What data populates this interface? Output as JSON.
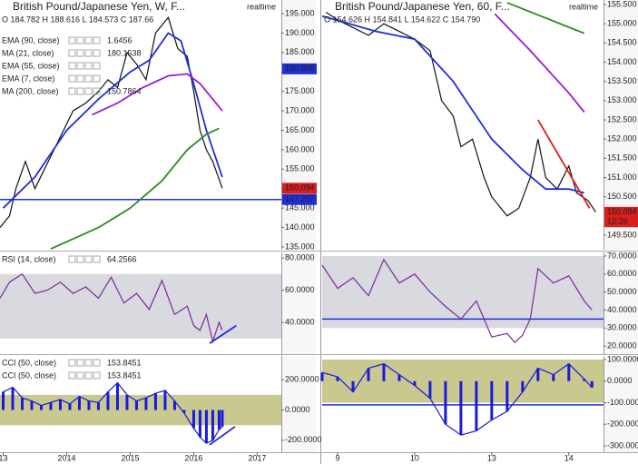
{
  "chart_data": [
    {
      "type": "line",
      "title": "British Pound/Japanese Yen, W, F...",
      "status": "realtime",
      "ohlc": "O 184.782  H 188.616  L 184.573  C 187.66",
      "indicators": [
        {
          "name": "EMA (90, close)",
          "value": "1.6456"
        },
        {
          "name": "MA (21, close)",
          "value": "180.1538"
        },
        {
          "name": "EMA (55, close)"
        },
        {
          "name": "EMA (7, close)"
        },
        {
          "name": "MA (200, close)",
          "value": "150.7864"
        }
      ],
      "xlim": [
        2012.95,
        2017.38
      ],
      "ylim": [
        134.3,
        198.5
      ],
      "yticks": [
        {
          "value": 135,
          "label": "135.000"
        },
        {
          "value": 140,
          "label": "140.000"
        },
        {
          "value": 145,
          "label": "145.000"
        },
        {
          "value": 150,
          "label": "150.000"
        },
        {
          "value": 155,
          "label": "155.000"
        },
        {
          "value": 160,
          "label": "160.000"
        },
        {
          "value": 165,
          "label": "165.000"
        },
        {
          "value": 170,
          "label": "170.000"
        },
        {
          "value": 175,
          "label": "175.000"
        },
        {
          "value": 180,
          "label": "180.000"
        },
        {
          "value": 185,
          "label": "185.000"
        },
        {
          "value": 190,
          "label": "190.000"
        },
        {
          "value": 195,
          "label": "195.000"
        }
      ],
      "series": [
        {
          "color": "#111111",
          "x": [
            2012.95,
            2013.1,
            2013.2,
            2013.35,
            2013.5,
            2013.65,
            2013.8,
            2013.95,
            2014.1,
            2014.3,
            2014.5,
            2014.65,
            2014.8,
            2014.95,
            2015.1,
            2015.25,
            2015.4,
            2015.5,
            2015.6,
            2015.75,
            2015.9,
            2016.0,
            2016.1,
            2016.2,
            2016.3,
            2016.45
          ],
          "values": [
            140,
            143,
            150,
            157,
            150,
            155,
            160,
            165,
            170,
            172,
            175,
            178,
            176,
            185,
            182,
            178,
            190,
            192,
            194,
            186,
            184,
            175,
            165,
            160,
            157,
            150.1
          ]
        },
        {
          "name": "MA (21, close)",
          "color": "#1f2fd8",
          "x": [
            2013.0,
            2013.5,
            2014.0,
            2014.5,
            2015.0,
            2015.3,
            2015.6,
            2015.8,
            2016.0,
            2016.2,
            2016.45
          ],
          "values": [
            145,
            153,
            165,
            173,
            180,
            183,
            190,
            188,
            177,
            165,
            153
          ]
        },
        {
          "name": "EMA (90, close)",
          "color": "#9a1ad8",
          "x": [
            2014.4,
            2014.8,
            2015.2,
            2015.6,
            2015.9,
            2016.1,
            2016.3,
            2016.45
          ],
          "values": [
            169,
            172,
            176,
            179,
            179.5,
            177,
            173,
            170
          ]
        },
        {
          "name": "MA (200, close)",
          "color": "#2e8b1e",
          "x": [
            2013.75,
            2014.5,
            2015.0,
            2015.5,
            2015.9,
            2016.2,
            2016.4
          ],
          "values": [
            134.5,
            140,
            145,
            152,
            160,
            164,
            165.5
          ]
        }
      ],
      "hlines": [
        {
          "value": 147.207,
          "color": "#1f2fd8"
        }
      ],
      "price_labels": [
        {
          "value": 180.8,
          "label": "180.800",
          "color": "#1f2fd8"
        },
        {
          "value": 150.094,
          "label": "150.094",
          "color": "#d81e1e"
        },
        {
          "value": 147.207,
          "label": "147.207",
          "color": "#1f2fd8"
        }
      ]
    },
    {
      "type": "line",
      "indicators": [
        {
          "name": "RSI (14, close)",
          "value": "64.2566"
        }
      ],
      "xlim": [
        2012.95,
        2017.38
      ],
      "ylim": [
        20.3,
        83.4
      ],
      "band": [
        30,
        70
      ],
      "yticks": [
        {
          "value": 40,
          "label": "40.0000"
        },
        {
          "value": 60,
          "label": "60.0000"
        },
        {
          "value": 80,
          "label": "80.0000"
        }
      ],
      "series": [
        {
          "color": "#7a2a9a",
          "x": [
            2012.95,
            2013.1,
            2013.3,
            2013.5,
            2013.7,
            2013.9,
            2014.1,
            2014.3,
            2014.5,
            2014.7,
            2014.9,
            2015.1,
            2015.3,
            2015.5,
            2015.7,
            2015.9,
            2016.0,
            2016.1,
            2016.2,
            2016.3,
            2016.4,
            2016.45
          ],
          "values": [
            55,
            65,
            70,
            58,
            60,
            65,
            58,
            62,
            55,
            68,
            52,
            58,
            48,
            66,
            45,
            50,
            38,
            35,
            45,
            28,
            40,
            35
          ]
        }
      ],
      "trend": {
        "x": [
          2016.25,
          2016.67
        ],
        "y": [
          27,
          38
        ],
        "color": "#1f2fd8"
      }
    },
    {
      "type": "bar",
      "indicators": [
        {
          "name": "CCI (50, close)",
          "value": "153.8451"
        },
        {
          "name": "CCI (50, close)",
          "value": "153.8451"
        }
      ],
      "xlim": [
        2012.95,
        2017.38
      ],
      "ylim": [
        -278.8,
        357.6
      ],
      "band": [
        -100,
        100
      ],
      "yticks": [
        {
          "value": -200,
          "label": "-200.0000"
        },
        {
          "value": 0,
          "label": "0.0000"
        },
        {
          "value": 200,
          "label": "200.0000"
        }
      ],
      "xticks": [
        {
          "value": 2013,
          "label": "13"
        },
        2014,
        2015,
        2016,
        2017
      ],
      "series": [
        {
          "color": "#1a1adc",
          "x": [
            2013.0,
            2013.15,
            2013.3,
            2013.45,
            2013.6,
            2013.75,
            2013.9,
            2014.05,
            2014.2,
            2014.35,
            2014.5,
            2014.65,
            2014.8,
            2014.95,
            2015.1,
            2015.25,
            2015.4,
            2015.55,
            2015.7,
            2015.85,
            2016.0,
            2016.1,
            2016.2,
            2016.3,
            2016.4,
            2016.45
          ],
          "values": [
            120,
            150,
            80,
            60,
            30,
            50,
            70,
            40,
            90,
            60,
            50,
            120,
            180,
            100,
            60,
            80,
            110,
            130,
            60,
            -20,
            -120,
            -180,
            -220,
            -200,
            -130,
            -110
          ]
        }
      ],
      "trend": {
        "x": [
          2016.25,
          2016.65
        ],
        "y": [
          -230,
          -110
        ],
        "color": "#1f2fd8"
      }
    },
    {
      "type": "line",
      "title": "British Pound/Japanese Yen, 60, F...",
      "status": "realtime",
      "ohlc": "O 154.626  H 154.841  L 154.622  C 154.790",
      "xlim": [
        -0.2,
        3.45
      ],
      "ylim": [
        149.122,
        155.618
      ],
      "yticks": [
        {
          "value": 149.5,
          "label": "149.500"
        },
        {
          "value": 150,
          "label": "150.000"
        },
        {
          "value": 150.5,
          "label": "150.500"
        },
        {
          "value": 151,
          "label": "151.000"
        },
        {
          "value": 151.5,
          "label": "151.500"
        },
        {
          "value": 152,
          "label": "152.000"
        },
        {
          "value": 152.5,
          "label": "152.500"
        },
        {
          "value": 153,
          "label": "153.000"
        },
        {
          "value": 153.5,
          "label": "153.500"
        },
        {
          "value": 154,
          "label": "154.000"
        },
        {
          "value": 154.5,
          "label": "154.500"
        },
        {
          "value": 155,
          "label": "155.000"
        },
        {
          "value": 155.5,
          "label": "155.500"
        }
      ],
      "series": [
        {
          "color": "#111111",
          "x": [
            -0.15,
            0,
            0.2,
            0.4,
            0.6,
            0.8,
            1.0,
            1.2,
            1.35,
            1.5,
            1.6,
            1.75,
            1.9,
            2.0,
            2.2,
            2.35,
            2.5,
            2.6,
            2.7,
            2.85,
            3.0,
            3.1,
            3.25,
            3.35
          ],
          "values": [
            155.3,
            155.1,
            154.9,
            154.7,
            155.0,
            154.8,
            154.6,
            154.3,
            153.0,
            152.6,
            151.8,
            152.0,
            151.0,
            150.5,
            150.0,
            150.2,
            151.0,
            152.0,
            151.0,
            150.7,
            151.3,
            150.6,
            150.4,
            150.1
          ]
        },
        {
          "color": "#1f2fd8",
          "x": [
            -0.2,
            0.5,
            1.0,
            1.5,
            2.0,
            2.4,
            2.7,
            3.0,
            3.2
          ],
          "values": [
            155.2,
            154.8,
            154.6,
            153.5,
            152.0,
            151.2,
            150.7,
            150.7,
            150.6
          ]
        },
        {
          "color": "#9a1ad8",
          "x": [
            2.04,
            2.5,
            3.0,
            3.2
          ],
          "values": [
            155.26,
            154.3,
            153.2,
            152.7
          ]
        },
        {
          "color": "#2e8b1e",
          "x": [
            2.2,
            3.2
          ],
          "values": [
            155.55,
            154.75
          ]
        }
      ],
      "trend": {
        "x": [
          2.6,
          3.27
        ],
        "y": [
          152.5,
          150.2
        ],
        "color": "#e02010"
      },
      "price_labels": [
        {
          "value": 150.094,
          "label": "150.094",
          "color": "#d81e1e"
        },
        {
          "value": 149.85,
          "label": "12:26",
          "color": "#d81e1e"
        }
      ]
    },
    {
      "type": "line",
      "xlim": [
        -0.2,
        3.45
      ],
      "ylim": [
        15.5,
        72
      ],
      "band": [
        30,
        70
      ],
      "yticks": [
        {
          "value": 20,
          "label": "20.0000"
        },
        {
          "value": 30,
          "label": "30.0000"
        },
        {
          "value": 40,
          "label": "40.0000"
        },
        {
          "value": 50,
          "label": "50.0000"
        },
        {
          "value": 60,
          "label": "60.0000"
        },
        {
          "value": 70,
          "label": "70.0000"
        }
      ],
      "series": [
        {
          "color": "#7a2a9a",
          "x": [
            -0.2,
            0,
            0.2,
            0.4,
            0.6,
            0.8,
            1.0,
            1.2,
            1.4,
            1.6,
            1.8,
            2.0,
            2.2,
            2.3,
            2.4,
            2.5,
            2.6,
            2.8,
            3.0,
            3.2,
            3.3
          ],
          "values": [
            65,
            52,
            58,
            48,
            68,
            55,
            60,
            50,
            42,
            35,
            45,
            25,
            27,
            22,
            26,
            35,
            63,
            55,
            59,
            45,
            40
          ]
        }
      ],
      "hlines": [
        {
          "value": 35,
          "color": "#1f2fd8"
        }
      ]
    },
    {
      "type": "bar",
      "xlim": [
        -0.2,
        3.45
      ],
      "ylim": [
        -329.5,
        116.8
      ],
      "band": [
        -100,
        100
      ],
      "yticks": [
        {
          "value": -300,
          "label": "-300.0000"
        },
        {
          "value": -200,
          "label": "-200.0000"
        },
        {
          "value": -100,
          "label": "-100.0000"
        },
        {
          "value": 0,
          "label": "0.0000"
        },
        {
          "value": 100,
          "label": "100.0000"
        }
      ],
      "xticks": [
        {
          "value": 0,
          "label": "9"
        },
        {
          "value": 1,
          "label": "10"
        },
        {
          "value": 2,
          "label": "13"
        },
        {
          "value": 3,
          "label": "14"
        }
      ],
      "series": [
        {
          "color": "#1a1adc",
          "x": [
            -0.2,
            0,
            0.2,
            0.4,
            0.6,
            0.8,
            1.0,
            1.2,
            1.4,
            1.6,
            1.8,
            2.0,
            2.2,
            2.4,
            2.6,
            2.8,
            3.0,
            3.2,
            3.3
          ],
          "values": [
            40,
            20,
            -50,
            60,
            80,
            30,
            -20,
            -80,
            -200,
            -250,
            -230,
            -180,
            -140,
            -50,
            60,
            30,
            80,
            10,
            -30
          ]
        }
      ],
      "hlines": [
        {
          "value": -110,
          "color": "#1f2fd8"
        }
      ]
    }
  ]
}
